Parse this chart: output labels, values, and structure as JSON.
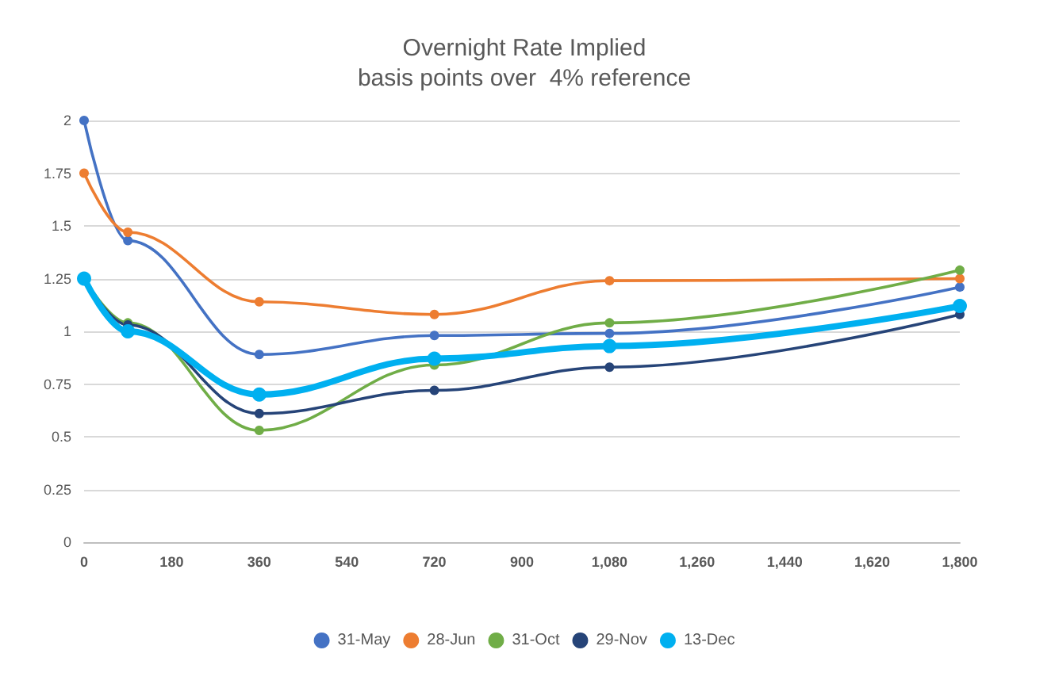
{
  "chart_data": {
    "type": "line",
    "title": "Overnight Rate Implied",
    "subtitle": "basis points over  4% reference",
    "x": [
      0,
      90,
      360,
      720,
      1080,
      1800
    ],
    "series": [
      {
        "name": "31-May",
        "color": "#4472c4",
        "values": [
          2,
          1.43,
          0.89,
          0.98,
          0.99,
          1.21
        ]
      },
      {
        "name": "28-Jun",
        "color": "#ed7d31",
        "values": [
          1.75,
          1.47,
          1.14,
          1.08,
          1.24,
          1.25
        ]
      },
      {
        "name": "31-Oct",
        "color": "#70ad47",
        "values": [
          1.25,
          1.04,
          0.53,
          0.84,
          1.04,
          1.29
        ]
      },
      {
        "name": "29-Nov",
        "color": "#264478",
        "values": [
          1.25,
          1.03,
          0.61,
          0.72,
          0.83,
          1.08
        ]
      },
      {
        "name": "13-Dec",
        "color": "#00b0f0",
        "values": [
          1.25,
          1,
          0.7,
          0.87,
          0.93,
          1.12
        ]
      }
    ],
    "xlim": [
      0,
      1800
    ],
    "xticks": [
      0,
      180,
      360,
      540,
      720,
      900,
      {
        "value": 1080,
        "label": "1,080"
      },
      {
        "value": 1260,
        "label": "1,260"
      },
      {
        "value": 1440,
        "label": "1,440"
      },
      {
        "value": 1620,
        "label": "1,620"
      },
      {
        "value": 1800,
        "label": "1,800"
      }
    ],
    "ylim": [
      0,
      2
    ],
    "yticks": [
      0,
      0.25,
      0.5,
      0.75,
      1,
      1.25,
      1.5,
      1.75,
      2
    ],
    "grid": "y",
    "legend": "bottom",
    "marker": "circle",
    "line_style": "solid"
  }
}
